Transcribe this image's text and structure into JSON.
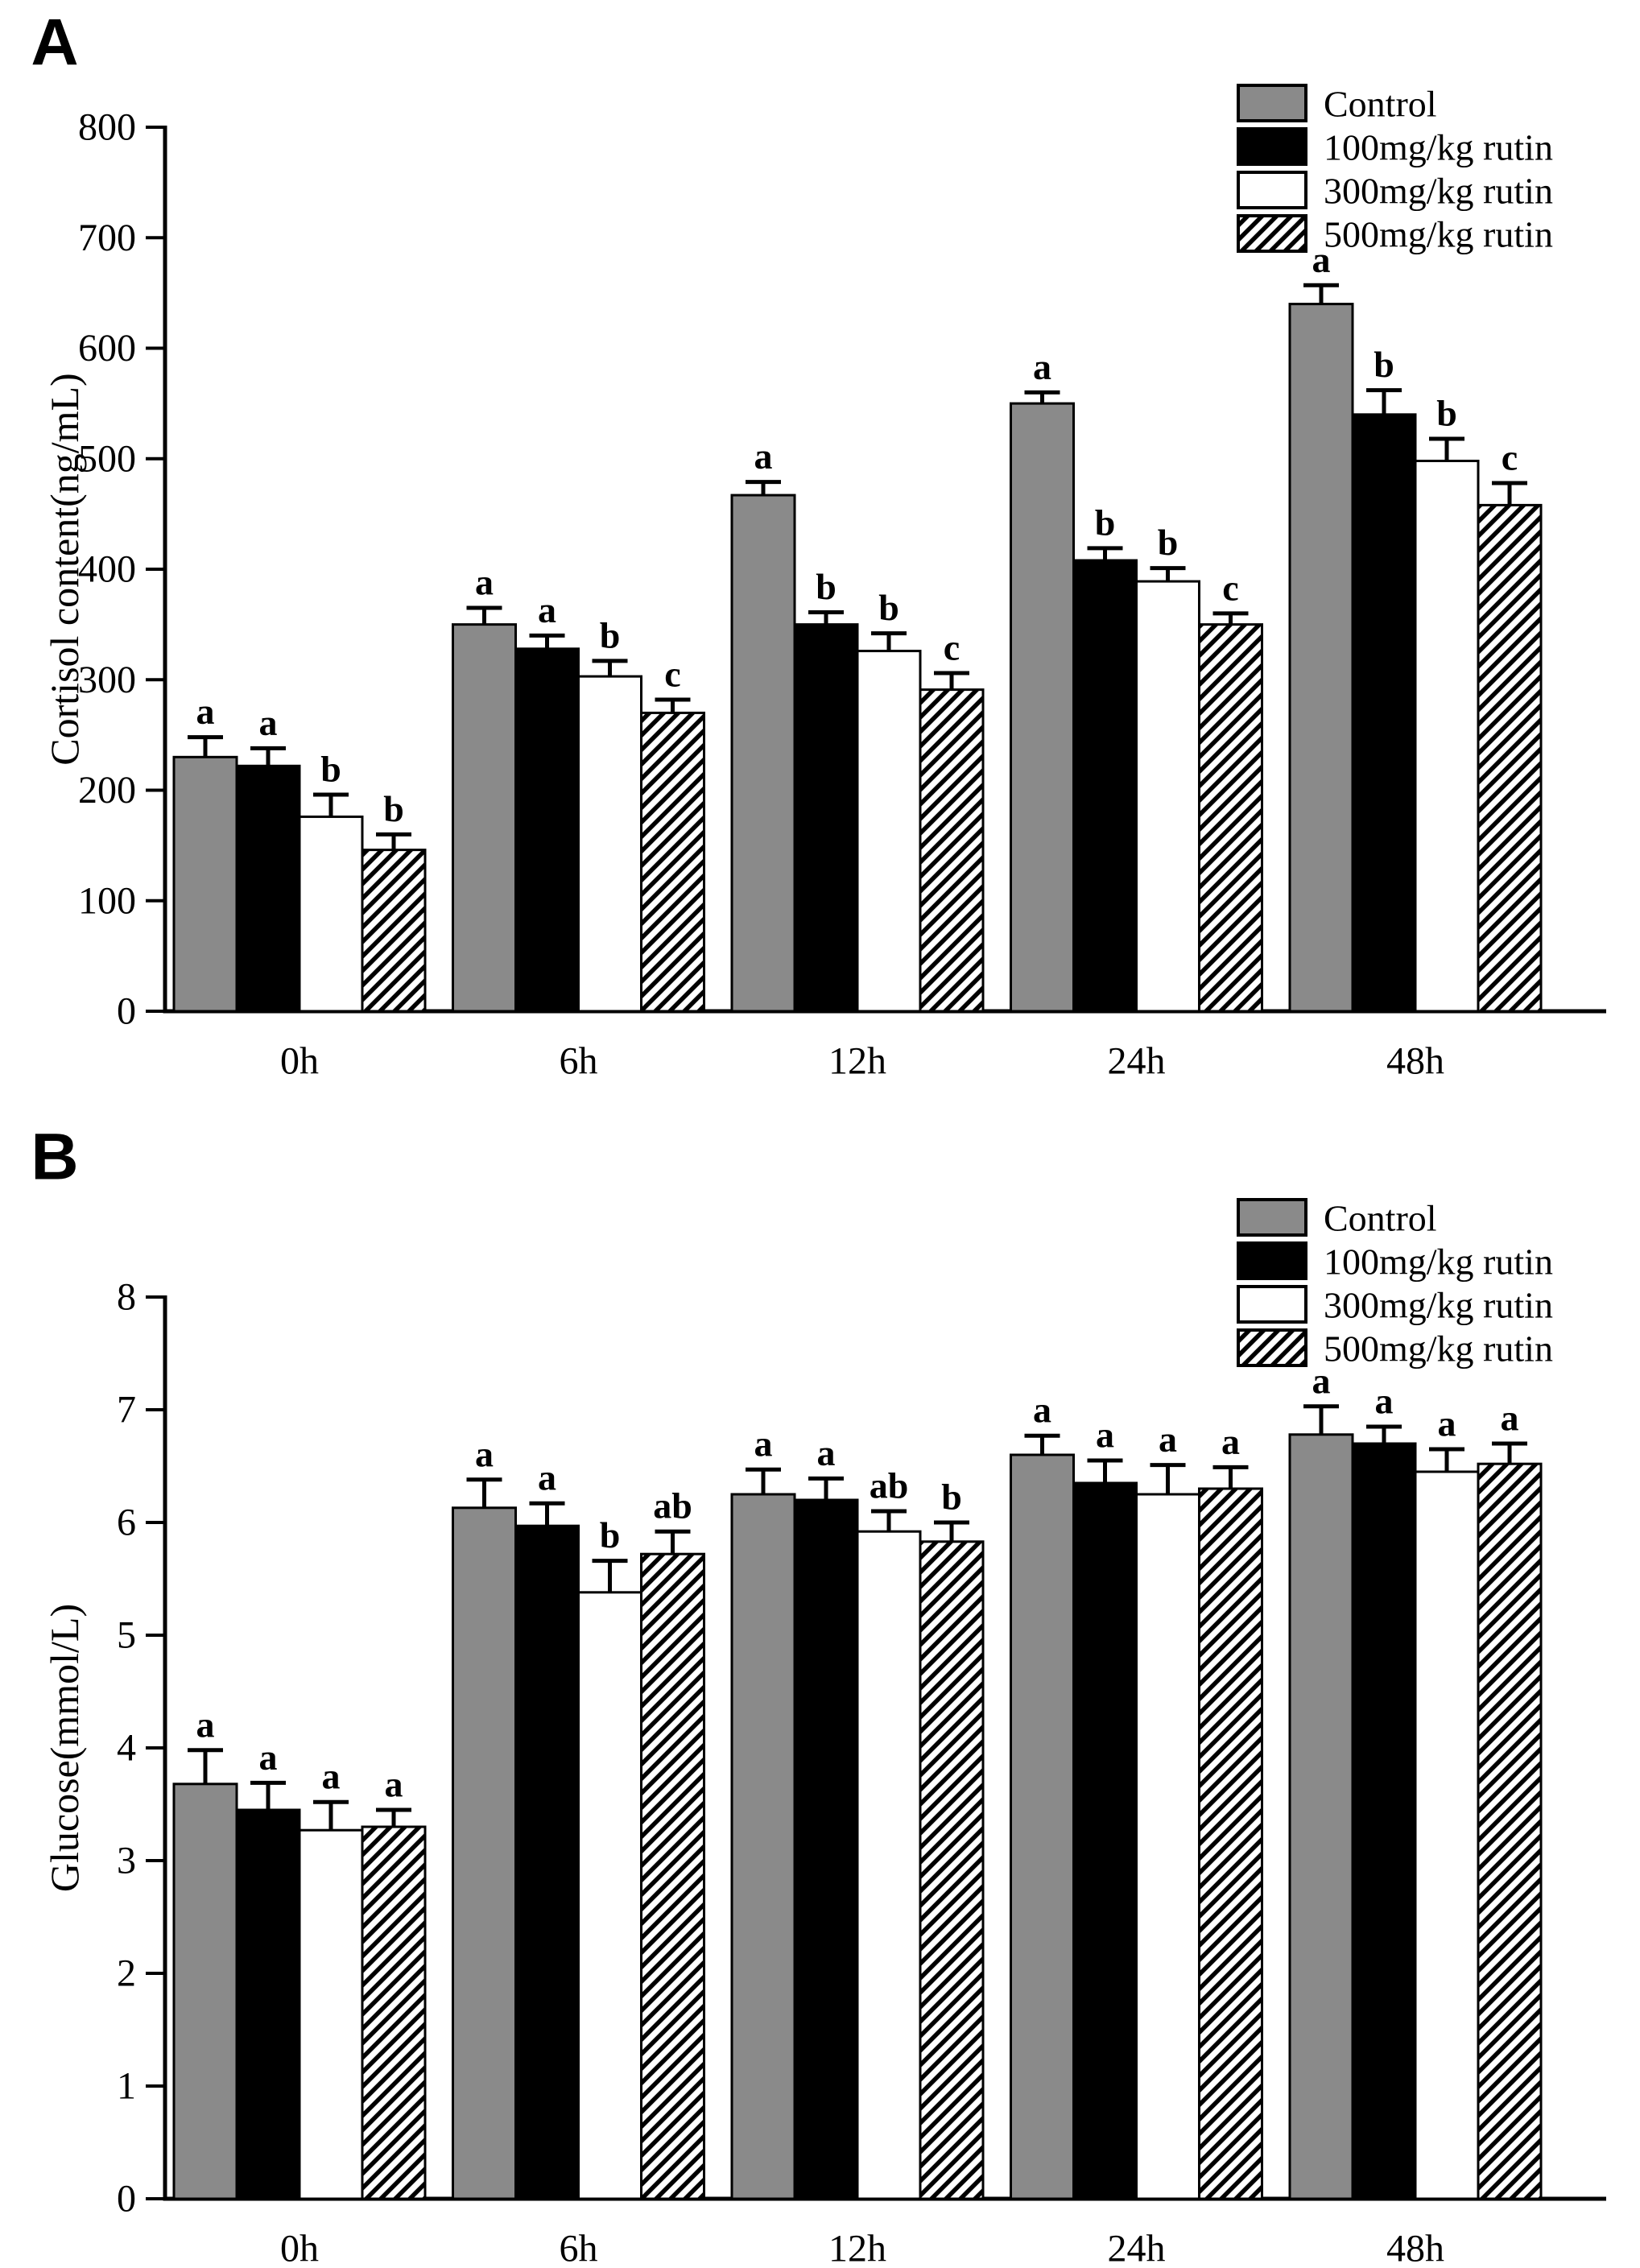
{
  "figure": {
    "background": "#ffffff",
    "panel_labels": [
      "A",
      "B"
    ]
  },
  "colors": {
    "control_gray": "#8a8a8a",
    "black": "#000000",
    "white": "#ffffff",
    "outline": "#000000",
    "text": "#000000"
  },
  "chart_data": [
    {
      "type": "bar",
      "panel_label": "A",
      "title": "",
      "xlabel": "",
      "ylabel": "Cortisol content(ng/mL)",
      "ylim": [
        0,
        800
      ],
      "ystep": 100,
      "yticks": [
        0,
        100,
        200,
        300,
        400,
        500,
        600,
        700,
        800
      ],
      "grid": false,
      "legend_position": "top-right",
      "categories": [
        "0h",
        "6h",
        "12h",
        "24h",
        "48h"
      ],
      "series": [
        {
          "name": "Control",
          "style": "gray",
          "values": [
            230,
            350,
            467,
            550,
            640
          ],
          "errors": [
            18,
            15,
            12,
            10,
            17
          ],
          "letters": [
            "a",
            "a",
            "a",
            "a",
            "a"
          ]
        },
        {
          "name": "100mg/kg rutin",
          "style": "black",
          "values": [
            222,
            328,
            350,
            408,
            540
          ],
          "errors": [
            16,
            12,
            11,
            11,
            22
          ],
          "letters": [
            "a",
            "a",
            "b",
            "b",
            "b"
          ]
        },
        {
          "name": "300mg/kg rutin",
          "style": "white",
          "values": [
            176,
            303,
            326,
            389,
            498
          ],
          "errors": [
            20,
            14,
            16,
            12,
            20
          ],
          "letters": [
            "b",
            "b",
            "b",
            "b",
            "b"
          ]
        },
        {
          "name": "500mg/kg rutin",
          "style": "hatch",
          "values": [
            146,
            270,
            291,
            350,
            458
          ],
          "errors": [
            14,
            12,
            15,
            10,
            20
          ],
          "letters": [
            "b",
            "c",
            "c",
            "c",
            "c"
          ]
        }
      ]
    },
    {
      "type": "bar",
      "panel_label": "B",
      "title": "",
      "xlabel": "",
      "ylabel": "Glucose(mmol/L)",
      "ylim": [
        0,
        8
      ],
      "ystep": 1,
      "yticks": [
        0,
        1,
        2,
        3,
        4,
        5,
        6,
        7,
        8
      ],
      "grid": false,
      "legend_position": "top-right",
      "categories": [
        "0h",
        "6h",
        "12h",
        "24h",
        "48h"
      ],
      "series": [
        {
          "name": "Control",
          "style": "gray",
          "values": [
            3.68,
            6.13,
            6.25,
            6.6,
            6.78
          ],
          "errors": [
            0.3,
            0.25,
            0.22,
            0.17,
            0.25
          ],
          "letters": [
            "a",
            "a",
            "a",
            "a",
            "a"
          ]
        },
        {
          "name": "100mg/kg rutin",
          "style": "black",
          "values": [
            3.45,
            5.97,
            6.2,
            6.35,
            6.7
          ],
          "errors": [
            0.24,
            0.2,
            0.19,
            0.2,
            0.15
          ],
          "letters": [
            "a",
            "a",
            "a",
            "a",
            "a"
          ]
        },
        {
          "name": "300mg/kg rutin",
          "style": "white",
          "values": [
            3.27,
            5.38,
            5.92,
            6.25,
            6.45
          ],
          "errors": [
            0.25,
            0.28,
            0.18,
            0.26,
            0.2
          ],
          "letters": [
            "a",
            "b",
            "ab",
            "a",
            "a"
          ]
        },
        {
          "name": "500mg/kg rutin",
          "style": "hatch",
          "values": [
            3.3,
            5.72,
            5.83,
            6.3,
            6.52
          ],
          "errors": [
            0.15,
            0.2,
            0.17,
            0.19,
            0.18
          ],
          "letters": [
            "a",
            "ab",
            "b",
            "a",
            "a"
          ]
        }
      ]
    }
  ]
}
